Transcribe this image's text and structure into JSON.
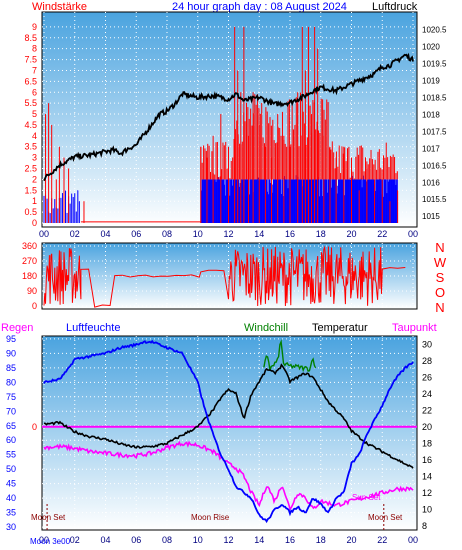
{
  "header": {
    "left_label": "Windstärke",
    "title": "24 hour graph day : 08 August 2024",
    "right_label": "Luftdruck"
  },
  "bottom_header": {
    "rain": "Regen",
    "humidity": "Luftfeuchte",
    "windchill": "Windchill",
    "temperature": "Temperatur",
    "dewpoint": "Taupunkt"
  },
  "direction_letters": [
    "N",
    "W",
    "S",
    "O",
    "N"
  ],
  "event_labels": {
    "moon_set_left": "Moon Set",
    "moon_rise": "Moon Rise",
    "sun_set": "Sun Set",
    "moon_set_right": "Moon Set",
    "corner": "Moon 3e00"
  },
  "colors": {
    "red": "#ff0000",
    "blue": "#0000ff",
    "black": "#000000",
    "magenta": "#ff00ff",
    "green": "#008000",
    "navy": "#000080",
    "sky_top": "#4aa3df",
    "sky_bottom": "#ffffff"
  },
  "chart_data": [
    {
      "type": "bar+line",
      "name_hint": "wind strength and air pressure",
      "x_ticks": [
        "00",
        "02",
        "04",
        "06",
        "08",
        "10",
        "12",
        "14",
        "16",
        "18",
        "20",
        "22",
        "00"
      ],
      "y_left_ticks": [
        "0",
        "0.5",
        "1",
        "1.5",
        "2",
        "2.5",
        "3",
        "3.5",
        "4",
        "4.5",
        "5",
        "5.5",
        "6",
        "6.5",
        "7",
        "7.5",
        "8",
        "8.5",
        "9"
      ],
      "y_left_range": [
        0,
        9.5
      ],
      "y_right_ticks": [
        "1015",
        "1015.5",
        "1016",
        "1016.5",
        "1017",
        "1017.5",
        "1018",
        "1018.5",
        "1019",
        "1019.5",
        "1020",
        "1020.5"
      ],
      "y_right_range": [
        1014.8,
        1020.9
      ],
      "pressure": {
        "hours": [
          0,
          0.5,
          1,
          2,
          3,
          4,
          4.5,
          5,
          5.5,
          6,
          6.5,
          7,
          7.5,
          8,
          8.5,
          9,
          10,
          11,
          12,
          12.5,
          13,
          14,
          15,
          16,
          16.5,
          17,
          17.5,
          18,
          19,
          20,
          21,
          21.5,
          22,
          22.5,
          23,
          23.5,
          24
        ],
        "values": [
          1016.1,
          1016.3,
          1016.5,
          1016.75,
          1016.8,
          1016.9,
          1016.95,
          1016.85,
          1017.0,
          1017.1,
          1017.4,
          1017.7,
          1018.0,
          1018.1,
          1018.3,
          1018.6,
          1018.5,
          1018.55,
          1018.45,
          1018.6,
          1018.4,
          1018.5,
          1018.3,
          1018.35,
          1018.45,
          1018.55,
          1018.7,
          1018.8,
          1018.7,
          1018.9,
          1019.1,
          1019.2,
          1019.4,
          1019.45,
          1019.6,
          1019.75,
          1019.6
        ]
      },
      "wind_gust_peaks": {
        "hours": [
          0.1,
          0.3,
          0.5,
          0.8,
          1.0,
          1.3,
          1.6,
          2.6,
          10.2,
          10.6,
          11.0,
          11.5,
          12.0,
          12.4,
          12.6,
          12.8,
          13.0,
          13.3,
          13.6,
          14.0,
          14.4,
          14.8,
          15.2,
          15.6,
          16.0,
          16.5,
          16.8,
          17.0,
          17.2,
          17.4,
          17.6,
          17.8,
          18.2,
          18.6,
          19.0,
          19.5,
          20.0,
          20.5,
          21.0,
          21.5,
          22.0,
          22.5,
          23.0
        ],
        "values": [
          5.0,
          5.5,
          4.5,
          2.0,
          3.5,
          3.0,
          2.5,
          1.0,
          3.5,
          3.0,
          4.0,
          5.0,
          3.5,
          9.0,
          7.0,
          6.0,
          9.0,
          4.0,
          6.0,
          4.5,
          3.5,
          3.0,
          5.0,
          4.0,
          3.5,
          6.0,
          9.0,
          7.0,
          9.0,
          5.0,
          9.0,
          8.0,
          4.0,
          3.5,
          3.0,
          3.5,
          3.0,
          1.5,
          2.5,
          2.0,
          2.0,
          1.0,
          1.5
        ]
      },
      "wind_avg_block": {
        "start_hour": 10.2,
        "end_hour": 23.0,
        "level": 2.0
      }
    },
    {
      "type": "scatter-line",
      "name_hint": "wind direction",
      "x_ticks": [
        "00",
        "02",
        "04",
        "06",
        "08",
        "10",
        "12",
        "14",
        "16",
        "18",
        "20",
        "22",
        "00"
      ],
      "y_ticks": [
        "0",
        "90",
        "180",
        "270",
        "360"
      ],
      "y_range": [
        0,
        360
      ],
      "segments": [
        {
          "from": 0.0,
          "to": 2.4,
          "noisy": true
        },
        {
          "from": 2.4,
          "to": 3.3,
          "noisy": false,
          "level": 225
        },
        {
          "from": 3.3,
          "to": 4.6,
          "noisy": false,
          "level": 0
        },
        {
          "from": 4.6,
          "to": 10.2,
          "noisy": false,
          "level": 180
        },
        {
          "from": 10.2,
          "to": 12.0,
          "noisy": false,
          "level": 210
        },
        {
          "from": 12.0,
          "to": 22.0,
          "noisy": true
        },
        {
          "from": 22.0,
          "to": 24.0,
          "noisy": false,
          "level": 225
        }
      ]
    },
    {
      "type": "line",
      "name_hint": "humidity, temperature, dewpoint, windchill",
      "x_ticks": [
        "00",
        "02",
        "04",
        "06",
        "08",
        "10",
        "12",
        "14",
        "16",
        "18",
        "20",
        "22",
        "00"
      ],
      "y_left_ticks": [
        "30",
        "35",
        "40",
        "45",
        "50",
        "55",
        "60",
        "65",
        "70",
        "75",
        "80",
        "85",
        "90",
        "95"
      ],
      "y_left_range": [
        29,
        96
      ],
      "y_right_ticks": [
        "8",
        "10",
        "12",
        "14",
        "16",
        "18",
        "20",
        "22",
        "24",
        "26",
        "28",
        "30"
      ],
      "y_right_range": [
        7.5,
        31
      ],
      "rain_marker": "0",
      "humidity": {
        "hours": [
          0,
          1,
          1.5,
          2,
          3,
          4,
          5,
          6,
          6.5,
          7,
          8,
          9,
          9.5,
          10,
          10.5,
          11,
          11.5,
          12,
          12.5,
          13,
          13.5,
          14,
          14.5,
          15,
          15.5,
          16,
          16.5,
          17,
          17.5,
          18,
          18.5,
          19,
          19.5,
          20,
          20.5,
          21,
          21.5,
          22,
          22.5,
          23,
          23.5,
          24
        ],
        "values": [
          80,
          81,
          84,
          88,
          89,
          90,
          92,
          93,
          94,
          94,
          92,
          90,
          85,
          80,
          70,
          62,
          55,
          50,
          44,
          42,
          40,
          34,
          32,
          36,
          38,
          35,
          37,
          35,
          40,
          38,
          35,
          40,
          42,
          52,
          55,
          62,
          67,
          72,
          78,
          82,
          85,
          87
        ]
      },
      "temperature": {
        "hours": [
          0,
          1,
          2,
          3,
          4,
          5,
          6,
          7,
          8,
          9,
          10,
          11,
          11.5,
          12,
          12.5,
          13,
          13.5,
          14,
          14.5,
          15,
          15.5,
          16,
          16.5,
          17,
          17.5,
          18,
          18.5,
          19,
          19.5,
          20,
          21,
          22,
          23,
          24
        ],
        "values": [
          20.3,
          20.5,
          19.4,
          18.8,
          18.5,
          17.9,
          17.5,
          17.6,
          18.0,
          19.0,
          20.0,
          22.0,
          23.5,
          24.5,
          24.0,
          21.0,
          24.0,
          25.5,
          27.0,
          26.5,
          27.5,
          25.5,
          26.0,
          26.5,
          26.0,
          24.5,
          23.0,
          22.0,
          21.0,
          19.5,
          18.0,
          17.0,
          16.0,
          15.0
        ]
      },
      "dewpoint": {
        "hours": [
          0,
          1,
          2,
          3,
          4,
          5,
          6,
          7,
          8,
          9,
          10,
          11,
          12,
          12.5,
          13,
          13.5,
          14,
          14.5,
          15,
          15.5,
          16,
          16.5,
          17,
          17.5,
          18,
          19,
          20,
          21,
          22,
          23,
          24
        ],
        "values": [
          17.5,
          17.6,
          17.4,
          17.0,
          16.8,
          16.6,
          16.5,
          16.8,
          17.5,
          18.0,
          17.8,
          17.0,
          15.5,
          15.0,
          14.0,
          12.0,
          10.5,
          13.0,
          11.0,
          13.0,
          10.0,
          12.0,
          11.5,
          10.0,
          11.0,
          10.5,
          11.0,
          11.5,
          12.0,
          12.5,
          12.5
        ]
      },
      "windchill": {
        "hours": [
          14.3,
          14.5,
          14.7,
          15.2,
          15.4,
          15.6,
          17.3,
          17.5,
          17.7
        ],
        "values": [
          27.0,
          29.0,
          27.0,
          28.0,
          30.5,
          27.5,
          27.0,
          28.5,
          26.5
        ]
      }
    }
  ]
}
